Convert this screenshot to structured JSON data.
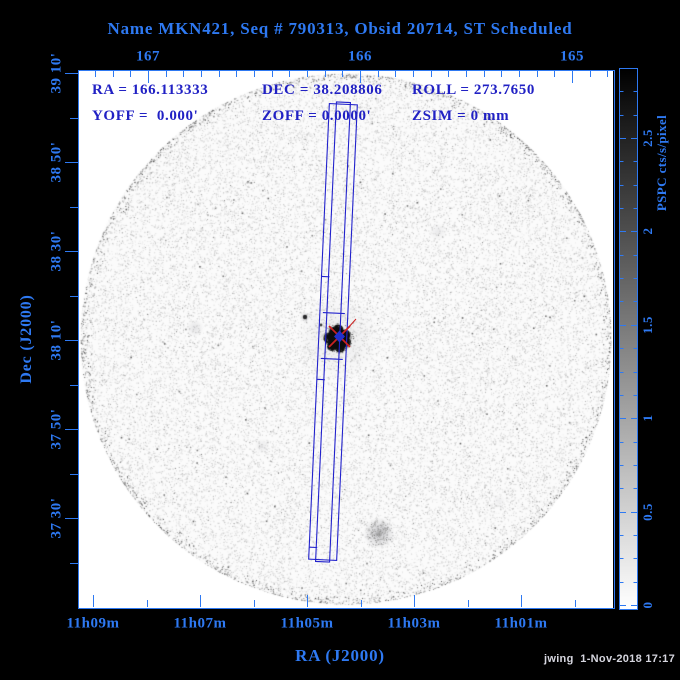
{
  "title": "Name MKN421, Seq # 790313, Obsid 20714, ST Scheduled",
  "overlay": {
    "ra": "RA = 166.113333",
    "dec": "DEC = 38.208806",
    "roll": "ROLL = 273.7650",
    "yoff": "YOFF =  0.000'",
    "zoff": "ZOFF = 0.0000'",
    "zsim": "ZSIM = 0 mm"
  },
  "axes": {
    "top": {
      "labels": [
        "167",
        "166",
        "165"
      ]
    },
    "bottom": {
      "labels": [
        "11h09m",
        "11h07m",
        "11h05m",
        "11h03m",
        "11h01m"
      ],
      "title": "RA (J2000)"
    },
    "left": {
      "labels": [
        "39 10'",
        "38 50'",
        "38 30'",
        "38 10'",
        "37 50'",
        "37 30'"
      ],
      "title": "Dec (J2000)"
    }
  },
  "colorbar": {
    "tick_labels": [
      "0",
      "0.5",
      "1",
      "1.5",
      "2",
      "2.5"
    ],
    "title": "PSPC cts/s/pixel"
  },
  "footer": {
    "credit": "jwing  1-Nov-2018 17:17"
  },
  "colors": {
    "axis_blue": "#2e79f2",
    "overlay_blue": "#2121c4",
    "footprint_blue": "#2222cc",
    "marker_red": "#cc2222",
    "marker_blue": "#2330cc",
    "background": "#000000",
    "field_white": "#ffffff"
  }
}
